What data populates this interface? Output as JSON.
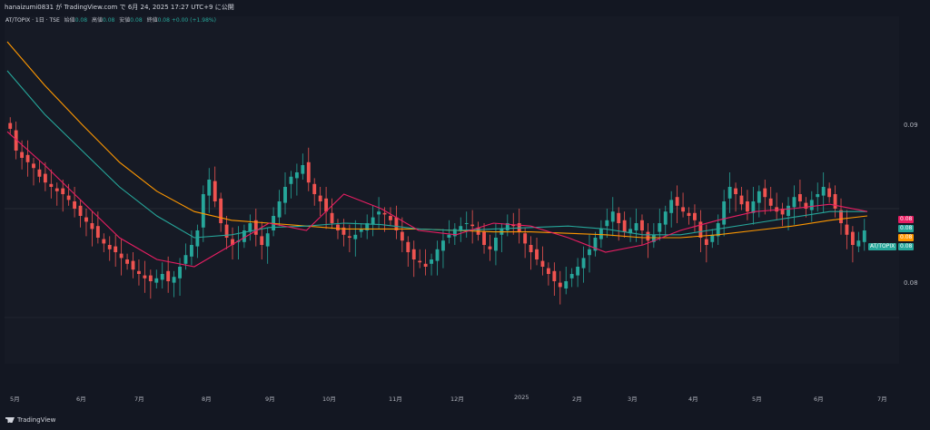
{
  "header": {
    "published_text": "hanaizumi0831 が TradingView.com で 6月 24, 2025 17:27 UTC+9 に公開"
  },
  "legend": {
    "symbol": "AT/TOPIX · 1日 · TSE",
    "open_label": "始値",
    "open_value": "0.08",
    "high_label": "高値",
    "high_value": "0.08",
    "low_label": "安値",
    "low_value": "0.08",
    "close_label": "終値",
    "close_value": "0.08",
    "change": "+0.00 (+1.98%)"
  },
  "colors": {
    "background": "#131722",
    "up": "#26a69a",
    "down": "#ef5350",
    "ma_pink": "#e91e63",
    "ma_teal": "#26a69a",
    "ma_orange": "#ff9800"
  },
  "price_axis": {
    "ticks": [
      "0.09",
      "0.08"
    ]
  },
  "price_tags": [
    {
      "value": "0.08",
      "color": "#e91e63"
    },
    {
      "value": "0.08",
      "color": "#26a69a"
    },
    {
      "value": "0.08",
      "color": "#ff9800"
    },
    {
      "value": "0.08",
      "color": "#26a69a"
    }
  ],
  "symbol_tag": "AT/TOPIX",
  "time_axis": [
    "5月",
    "6月",
    "7月",
    "8月",
    "9月",
    "10月",
    "11月",
    "12月",
    "2025",
    "2月",
    "3月",
    "4月",
    "5月",
    "6月",
    "7月"
  ],
  "footer": {
    "logo_text": "TradingView"
  },
  "chart_data": {
    "type": "candlestick",
    "ylim": [
      0.0735,
      0.0965
    ],
    "series_close": [
      0.0895,
      0.088,
      0.0875,
      0.0872,
      0.0868,
      0.0862,
      0.0858,
      0.0855,
      0.0852,
      0.085,
      0.0846,
      0.084,
      0.0835,
      0.0831,
      0.0826,
      0.082,
      0.0816,
      0.0812,
      0.081,
      0.0806,
      0.0802,
      0.0798,
      0.0795,
      0.0792,
      0.079,
      0.0792,
      0.0795,
      0.079,
      0.0793,
      0.08,
      0.0808,
      0.0815,
      0.0825,
      0.085,
      0.086,
      0.0845,
      0.083,
      0.082,
      0.0815,
      0.0818,
      0.0825,
      0.083,
      0.0822,
      0.0815,
      0.0823,
      0.0835,
      0.0845,
      0.0855,
      0.0862,
      0.0865,
      0.087,
      0.0858,
      0.085,
      0.0845,
      0.0838,
      0.083,
      0.0825,
      0.0822,
      0.082,
      0.0822,
      0.0826,
      0.083,
      0.0834,
      0.0838,
      0.0836,
      0.0832,
      0.0825,
      0.0818,
      0.081,
      0.0805,
      0.0803,
      0.08,
      0.0805,
      0.0812,
      0.0818,
      0.0822,
      0.0826,
      0.0828,
      0.083,
      0.0828,
      0.0822,
      0.0815,
      0.0812,
      0.082,
      0.0826,
      0.083,
      0.0828,
      0.0824,
      0.0816,
      0.081,
      0.0805,
      0.08,
      0.0795,
      0.079,
      0.0786,
      0.079,
      0.0795,
      0.08,
      0.0806,
      0.0812,
      0.082,
      0.0826,
      0.0832,
      0.0838,
      0.083,
      0.0824,
      0.0826,
      0.083,
      0.0825,
      0.0818,
      0.0822,
      0.083,
      0.0838,
      0.0846,
      0.0842,
      0.0838,
      0.0835,
      0.0832,
      0.082,
      0.0815,
      0.0822,
      0.083,
      0.0845,
      0.0855,
      0.085,
      0.0843,
      0.0838,
      0.0845,
      0.0852,
      0.0848,
      0.0842,
      0.0838,
      0.0836,
      0.0842,
      0.0848,
      0.0845,
      0.084,
      0.0846,
      0.085,
      0.0855,
      0.0848,
      0.084,
      0.083,
      0.0822,
      0.0815,
      0.0818,
      0.0825
    ],
    "ma_pink": [
      0.0893,
      0.087,
      0.0845,
      0.082,
      0.0805,
      0.08,
      0.0815,
      0.083,
      0.0825,
      0.085,
      0.084,
      0.0825,
      0.0822,
      0.083,
      0.0828,
      0.082,
      0.081,
      0.0815,
      0.0825,
      0.0832,
      0.0838,
      0.084,
      0.0843,
      0.0838
    ],
    "ma_teal": [
      0.0935,
      0.0905,
      0.088,
      0.0855,
      0.0835,
      0.082,
      0.0822,
      0.0827,
      0.0828,
      0.083,
      0.0829,
      0.0826,
      0.0825,
      0.0826,
      0.0827,
      0.0828,
      0.0826,
      0.0822,
      0.0822,
      0.0826,
      0.083,
      0.0834,
      0.0838,
      0.0838
    ],
    "ma_orange": [
      0.0955,
      0.0925,
      0.0898,
      0.0872,
      0.0852,
      0.0838,
      0.0832,
      0.083,
      0.0828,
      0.0826,
      0.0826,
      0.0826,
      0.0825,
      0.0824,
      0.0824,
      0.0823,
      0.0822,
      0.082,
      0.082,
      0.0822,
      0.0825,
      0.0828,
      0.0832,
      0.0835
    ]
  }
}
